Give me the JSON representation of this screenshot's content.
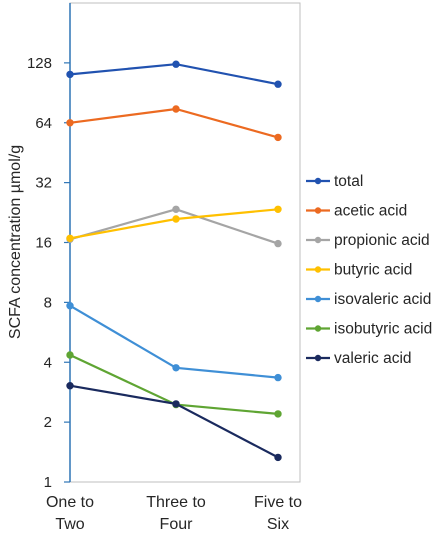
{
  "chart_data": {
    "type": "line",
    "x": [
      "One to Two",
      "Three to Four",
      "Five to Six"
    ],
    "x_tick_lines": [
      [
        "One to",
        "Two"
      ],
      [
        "Three to",
        "Four"
      ],
      [
        "Five to",
        "Six"
      ]
    ],
    "ylabel": "SCFA concentration µmol/g",
    "yscale": "log2",
    "ylim": [
      1,
      256
    ],
    "yticks": [
      1,
      2,
      4,
      8,
      16,
      32,
      64,
      128
    ],
    "ytick_labels": [
      "1",
      "2",
      "4",
      "8",
      "16",
      "32",
      "64",
      "128"
    ],
    "grid": false,
    "legend_position": "right",
    "series": [
      {
        "name": "total",
        "color": "#2152b0",
        "values": [
          112,
          126,
          100
        ]
      },
      {
        "name": "acetic acid",
        "color": "#ec6a21",
        "values": [
          64,
          75,
          54
        ]
      },
      {
        "name": "propionic acid",
        "color": "#a5a5a5",
        "values": [
          16.6,
          23.5,
          15.8
        ]
      },
      {
        "name": "butyric acid",
        "color": "#ffc000",
        "values": [
          16.8,
          21,
          23.5
        ]
      },
      {
        "name": "isovaleric acid",
        "color": "#3f8fd6",
        "values": [
          7.7,
          3.75,
          3.35
        ]
      },
      {
        "name": "isobutyric acid",
        "color": "#5fa533",
        "values": [
          4.35,
          2.45,
          2.2
        ]
      },
      {
        "name": "valeric acid",
        "color": "#1a2a5e",
        "values": [
          3.05,
          2.47,
          1.33
        ]
      }
    ]
  }
}
